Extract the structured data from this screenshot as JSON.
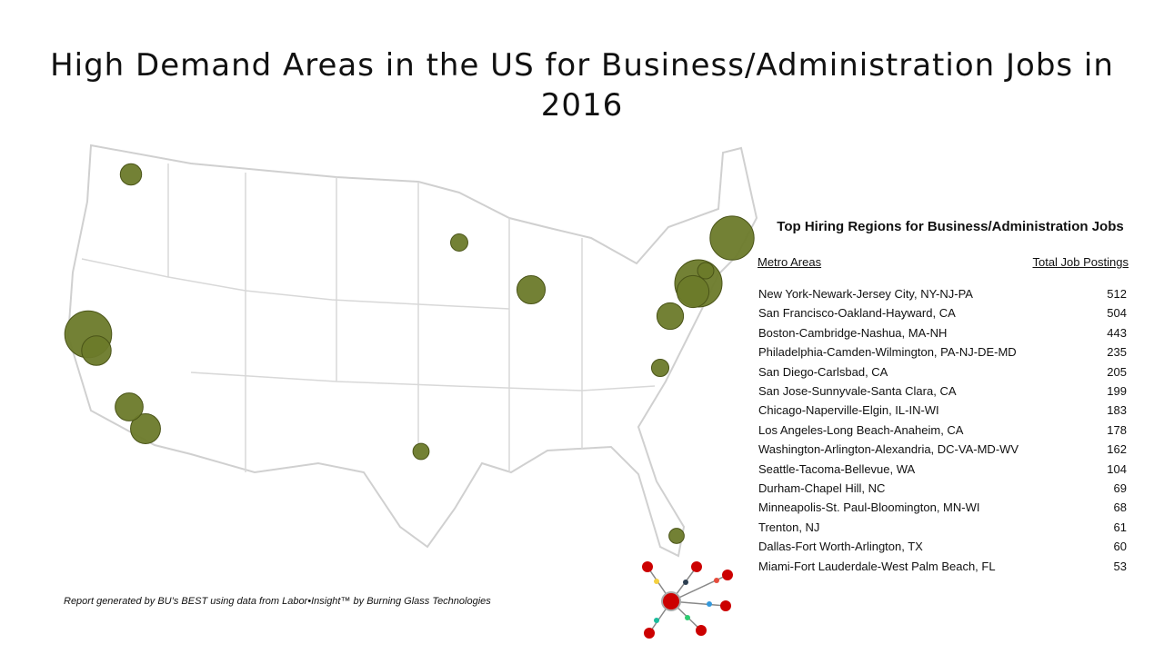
{
  "title": "High Demand Areas in the US for Business/Administration Jobs in 2016",
  "table": {
    "title": "Top Hiring Regions for Business/Administration Jobs",
    "headers": [
      "Metro Areas",
      "Total Job Postings"
    ],
    "rows": [
      [
        "New York-Newark-Jersey City, NY-NJ-PA",
        512
      ],
      [
        "San Francisco-Oakland-Hayward, CA",
        504
      ],
      [
        "Boston-Cambridge-Nashua, MA-NH",
        443
      ],
      [
        "Philadelphia-Camden-Wilmington, PA-NJ-DE-MD",
        235
      ],
      [
        "San Diego-Carlsbad, CA",
        205
      ],
      [
        "San Jose-Sunnyvale-Santa Clara, CA",
        199
      ],
      [
        "Chicago-Naperville-Elgin, IL-IN-WI",
        183
      ],
      [
        "Los Angeles-Long Beach-Anaheim, CA",
        178
      ],
      [
        "Washington-Arlington-Alexandria, DC-VA-MD-WV",
        162
      ],
      [
        "Seattle-Tacoma-Bellevue, WA",
        104
      ],
      [
        "Durham-Chapel Hill, NC",
        69
      ],
      [
        "Minneapolis-St. Paul-Bloomington, MN-WI",
        68
      ],
      [
        "Trenton, NJ",
        61
      ],
      [
        "Dallas-Fort Worth-Arlington, TX",
        60
      ],
      [
        "Miami-Fort Lauderdale-West Palm Beach, FL",
        53
      ]
    ]
  },
  "footer": "Report generated by BU’s BEST using data from Labor•Insight™ by Burning Glass Technologies"
}
